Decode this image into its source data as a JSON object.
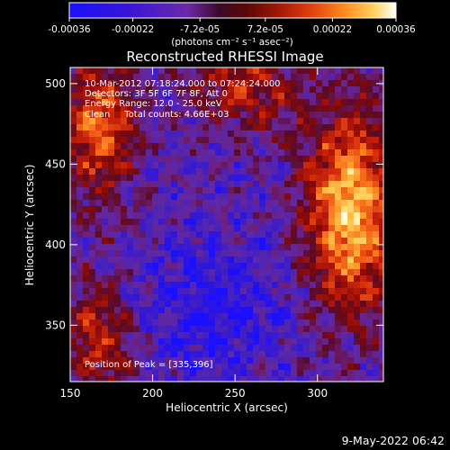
{
  "colorbar": {
    "tick_labels": [
      "-0.00036",
      "-0.00022",
      "-7.2e-05",
      "7.2e-05",
      "0.00022",
      "0.00036"
    ],
    "units": "(photons cm⁻² s⁻¹ asec⁻²)",
    "range": [
      -0.00036,
      0.00036
    ],
    "colors": [
      "#1a10ff",
      "#3a14d8",
      "#6a2aa8",
      "#5a1030",
      "#8a0a0a",
      "#c02008",
      "#ee4a10",
      "#ff8a1c",
      "#ffc84a",
      "#fff0b0",
      "#ffffff"
    ]
  },
  "annotations": {
    "time": "10-Mar-2012 07:18:24.000 to 07:24:24.000",
    "detectors": "Detectors: 3F 5F 6F 7F 8F, Att 0",
    "energy": "Energy Range: 12.0 - 25.0 keV",
    "clean": "Clean     Total counts: 4.66E+03",
    "peak": "Position of Peak = [335,396]",
    "footer_date": "9-May-2022 06:42"
  },
  "chart_data": {
    "type": "heatmap",
    "title": "Reconstructed RHESSI Image",
    "xlabel": "Heliocentric X (arcsec)",
    "ylabel": "Heliocentric Y (arcsec)",
    "xlim": [
      150,
      340
    ],
    "ylim": [
      315,
      510
    ],
    "x_ticks": [
      150,
      200,
      250,
      300
    ],
    "y_ticks": [
      350,
      400,
      450,
      500
    ],
    "peak": [
      335,
      396
    ],
    "grid": false,
    "colorscale": "signed flux, blue (negative) to white (positive)"
  }
}
